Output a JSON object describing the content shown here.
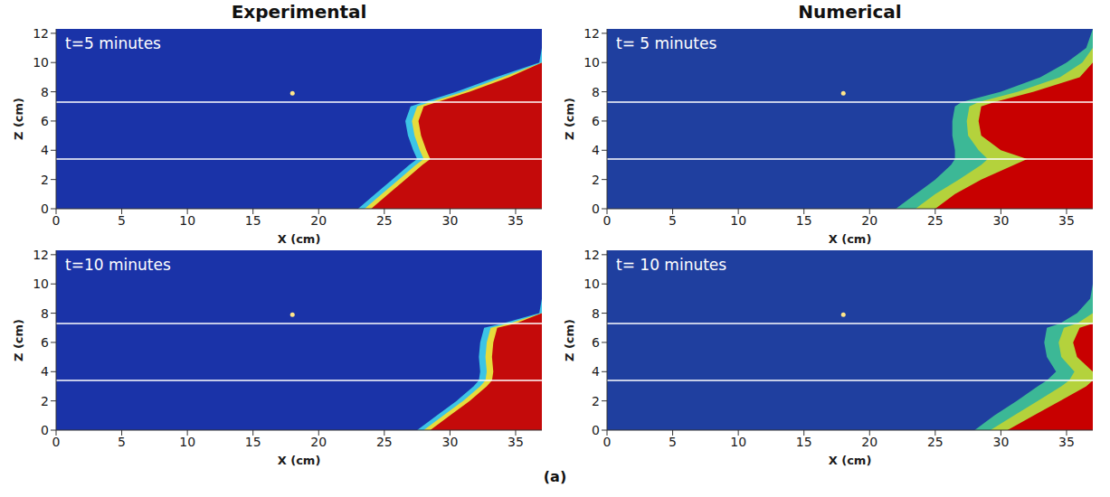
{
  "caption": "(a)",
  "chart_data": [
    {
      "type": "area",
      "title": "Experimental",
      "annotation": "t=5 minutes",
      "xlabel": "X (cm)",
      "ylabel": "Z (cm)",
      "xlim": [
        0,
        37
      ],
      "ylim": [
        0,
        12.3
      ],
      "xticks": [
        0,
        5,
        10,
        15,
        20,
        25,
        30,
        35
      ],
      "yticks": [
        0,
        2,
        4,
        6,
        8,
        10,
        12
      ],
      "color": "#c40a0a",
      "layer_boundaries": [
        7.3,
        3.4
      ],
      "point": [
        18,
        7.9
      ],
      "z": [
        0,
        1,
        2,
        3,
        3.4,
        4,
        5,
        6,
        7,
        7.3,
        8,
        9,
        10,
        11,
        12.3
      ],
      "fronts": [
        {
          "color": "#e6dc3c",
          "values": [
            24,
            25.3,
            26.6,
            27.9,
            28.5,
            28.2,
            27.8,
            27.6,
            28.0,
            29.0,
            31.5,
            34.5,
            37,
            37,
            37
          ]
        },
        {
          "color": "#3cc4e6",
          "values": [
            23.5,
            24.8,
            26.1,
            27.4,
            28.0,
            27.7,
            27.3,
            27.1,
            27.5,
            28.5,
            31.0,
            34.0,
            37,
            37,
            37
          ]
        },
        {
          "color": "#1a33a8",
          "values": [
            23,
            24.3,
            25.6,
            26.9,
            27.5,
            27.2,
            26.8,
            26.6,
            27.0,
            28.0,
            30.5,
            33.5,
            36.8,
            37,
            37
          ]
        }
      ]
    },
    {
      "type": "area",
      "title": "Numerical",
      "annotation": "t= 5 minutes",
      "xlabel": "X (cm)",
      "ylabel": "Z (cm)",
      "xlim": [
        0,
        37
      ],
      "ylim": [
        0,
        12.3
      ],
      "xticks": [
        0,
        5,
        10,
        15,
        20,
        25,
        30,
        35
      ],
      "yticks": [
        0,
        2,
        4,
        6,
        8,
        10,
        12
      ],
      "color": "#c80000",
      "layer_boundaries": [
        7.3,
        3.4
      ],
      "point": [
        18,
        7.9
      ],
      "z": [
        0,
        1,
        2,
        3,
        3.4,
        4,
        5,
        6,
        7,
        7.3,
        8,
        9,
        10,
        11,
        12.3
      ],
      "fronts": [
        {
          "color": "#b4d23c",
          "values": [
            25,
            26.5,
            28.5,
            31,
            32,
            30,
            28.5,
            28.3,
            28.5,
            29.5,
            32.5,
            36,
            37,
            37,
            37
          ]
        },
        {
          "color": "#3cb896",
          "values": [
            23.5,
            25,
            26.8,
            28.5,
            29,
            28.3,
            27.5,
            27.4,
            27.6,
            28.3,
            31.3,
            34.5,
            36.2,
            37,
            37
          ]
        },
        {
          "color": "#1f3f9f",
          "values": [
            22,
            23.5,
            25,
            26.2,
            26.5,
            26.5,
            26.3,
            26.3,
            26.5,
            27,
            30,
            33,
            35,
            36.5,
            37
          ]
        }
      ]
    },
    {
      "type": "area",
      "annotation": "t=10 minutes",
      "xlabel": "X (cm)",
      "ylabel": "Z (cm)",
      "xlim": [
        0,
        37
      ],
      "ylim": [
        0,
        12.3
      ],
      "xticks": [
        0,
        5,
        10,
        15,
        20,
        25,
        30,
        35
      ],
      "yticks": [
        0,
        2,
        4,
        6,
        8,
        10,
        12
      ],
      "color": "#c40a0a",
      "layer_boundaries": [
        7.3,
        3.4
      ],
      "point": [
        18,
        7.9
      ],
      "z": [
        0,
        1,
        2,
        3,
        3.4,
        4,
        5,
        6,
        7,
        7.3,
        8,
        9,
        10,
        11,
        12.3
      ],
      "fronts": [
        {
          "color": "#e6dc3c",
          "values": [
            28.5,
            30,
            31.5,
            32.8,
            33.2,
            33.3,
            33.2,
            33.3,
            33.6,
            35,
            37,
            37,
            37,
            37,
            37
          ]
        },
        {
          "color": "#3cc4e6",
          "values": [
            28,
            29.5,
            31,
            32.3,
            32.7,
            32.8,
            32.7,
            32.8,
            33.1,
            34.5,
            37,
            37,
            37,
            37,
            37
          ]
        },
        {
          "color": "#1a33a8",
          "values": [
            27.5,
            29,
            30.5,
            31.8,
            32.2,
            32.3,
            32.2,
            32.3,
            32.6,
            34.0,
            36.8,
            37,
            37,
            37,
            37
          ]
        }
      ]
    },
    {
      "type": "area",
      "annotation": "t= 10 minutes",
      "xlabel": "X (cm)",
      "ylabel": "Z (cm)",
      "xlim": [
        0,
        37
      ],
      "ylim": [
        0,
        12.3
      ],
      "xticks": [
        0,
        5,
        10,
        15,
        20,
        25,
        30,
        35
      ],
      "yticks": [
        0,
        2,
        4,
        6,
        8,
        10,
        12
      ],
      "color": "#c80000",
      "layer_boundaries": [
        7.3,
        3.4
      ],
      "point": [
        18,
        7.9
      ],
      "z": [
        0,
        1,
        2,
        3,
        3.4,
        4,
        5,
        6,
        7,
        7.3,
        8,
        9,
        10,
        11,
        12.3
      ],
      "fronts": [
        {
          "color": "#b4d23c",
          "values": [
            30.5,
            32.5,
            34.5,
            36.5,
            37,
            37,
            35.8,
            35.5,
            36,
            37,
            37,
            37,
            37,
            37,
            37
          ]
        },
        {
          "color": "#3cb896",
          "values": [
            29.2,
            31,
            32.8,
            34.6,
            35.2,
            35.6,
            34.6,
            34.4,
            34.8,
            35.8,
            37,
            37,
            37,
            37,
            37
          ]
        },
        {
          "color": "#1f3f9f",
          "values": [
            28,
            29.5,
            31.2,
            32.8,
            33.5,
            34.2,
            33.5,
            33.3,
            33.5,
            34.5,
            35.8,
            36.8,
            37,
            37,
            37
          ]
        }
      ]
    }
  ]
}
